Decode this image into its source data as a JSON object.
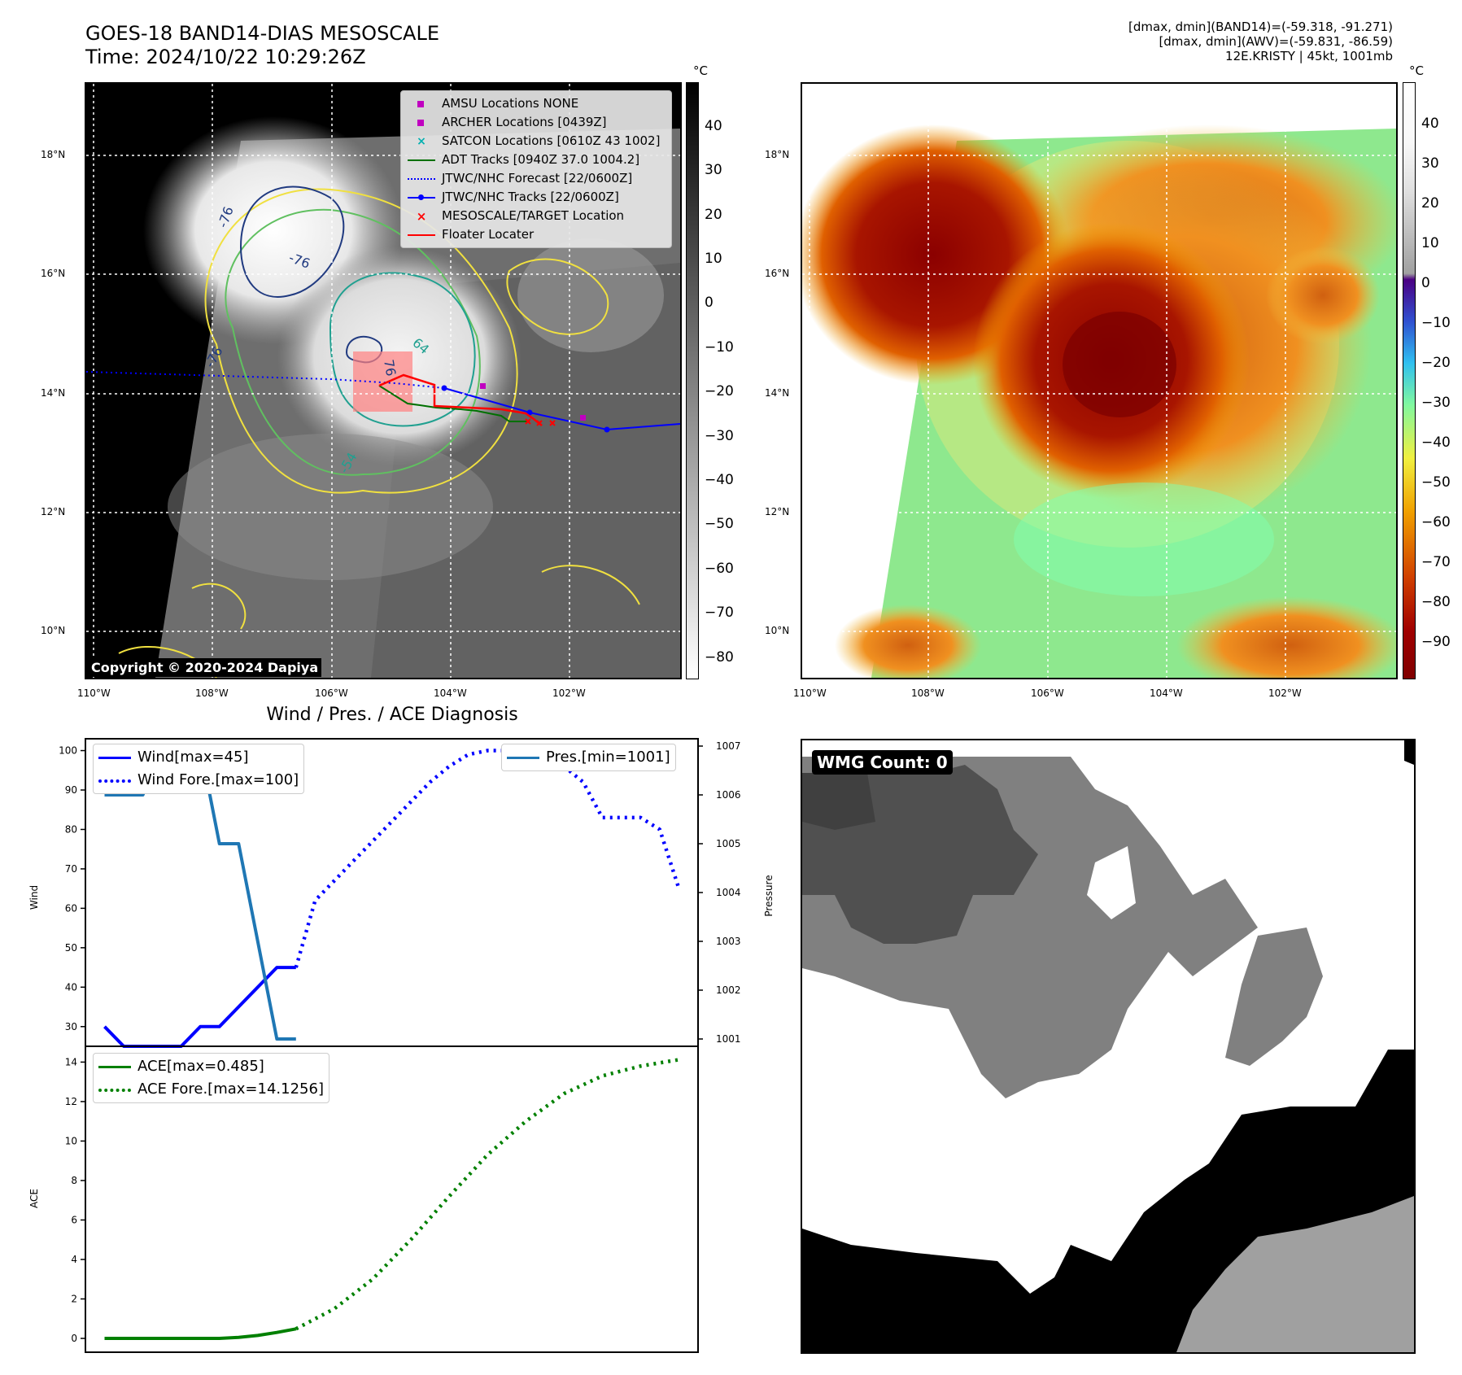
{
  "header": {
    "title": "GOES-18 BAND14-DIAS MESOSCALE",
    "time": "Time: 2024/10/22 10:29:26Z",
    "info_line1": "[dmax, dmin](BAND14)=(-59.318, -91.271)",
    "info_line2": "[dmax, dmin](AWV)=(-59.831, -86.59)",
    "info_line3": "12E.KRISTY | 45kt, 1001mb"
  },
  "maps": {
    "lat_ticks": [
      "18°N",
      "16°N",
      "14°N",
      "12°N",
      "10°N"
    ],
    "lon_ticks": [
      "110°W",
      "108°W",
      "106°W",
      "104°W",
      "102°W"
    ],
    "copyright": "Copyright © 2020-2024 Dapiya",
    "unit": "°C",
    "cbar_left_ticks": [
      "40",
      "30",
      "20",
      "10",
      "0",
      "−10",
      "−20",
      "−30",
      "−40",
      "−50",
      "−60",
      "−70",
      "−80"
    ],
    "cbar_right_ticks": [
      "40",
      "30",
      "20",
      "10",
      "0",
      "−10",
      "−20",
      "−30",
      "−40",
      "−50",
      "−60",
      "−70",
      "−80",
      "−90"
    ],
    "contour_labels": [
      "-76",
      "-76",
      "64",
      "76",
      "-76",
      "-54"
    ],
    "legend": [
      {
        "label": "AMSU Locations NONE",
        "kind": "square",
        "color": "#c000c0"
      },
      {
        "label": "ARCHER Locations [0439Z]",
        "kind": "square",
        "color": "#c000c0"
      },
      {
        "label": "SATCON Locations [0610Z 43 1002]",
        "kind": "cross",
        "color": "#00b0b0"
      },
      {
        "label": "ADT Tracks [0940Z 37.0 1004.2]",
        "kind": "line",
        "color": "#007000"
      },
      {
        "label": "JTWC/NHC Forecast [22/0600Z]",
        "kind": "dotted",
        "color": "#0000ff"
      },
      {
        "label": "JTWC/NHC Tracks [22/0600Z]",
        "kind": "linedot",
        "color": "#0000ff"
      },
      {
        "label": "MESOSCALE/TARGET Location",
        "kind": "redx",
        "color": "#ff0000"
      },
      {
        "label": "Floater Locater",
        "kind": "line",
        "color": "#ff0000"
      }
    ]
  },
  "wmg": {
    "label": "WMG Count: 0"
  },
  "chart_data": [
    {
      "type": "line",
      "title": "Wind / Pres. / ACE Diagnosis",
      "ylabel": "Wind",
      "ylabel_right": "Pressure",
      "ylim": [
        25,
        103
      ],
      "ylim_right": [
        1000.85,
        1007.15
      ],
      "yticks": [
        30,
        40,
        50,
        60,
        70,
        80,
        90,
        100
      ],
      "yticks_right": [
        1001,
        1002,
        1003,
        1004,
        1005,
        1006,
        1007
      ],
      "x_range": [
        -1,
        31
      ],
      "series": [
        {
          "name": "Wind[max=45]",
          "style": "solid",
          "color": "#0000ff",
          "axis": "left",
          "x": [
            0,
            1,
            2,
            3,
            4,
            5,
            6,
            7,
            8,
            9,
            10
          ],
          "values": [
            30,
            25,
            25,
            25,
            25,
            30,
            30,
            35,
            40,
            45,
            45
          ]
        },
        {
          "name": "Wind Fore.[max=100]",
          "style": "dotted",
          "color": "#0000ff",
          "axis": "left",
          "x": [
            10,
            11,
            12,
            13,
            14,
            15,
            16,
            17,
            18,
            19,
            20,
            21,
            22,
            23,
            24,
            25,
            26,
            27,
            28,
            29,
            30
          ],
          "values": [
            45,
            62,
            67,
            72,
            77,
            82,
            87,
            92,
            96,
            99,
            100,
            100,
            100,
            98,
            96,
            92,
            83,
            83,
            83,
            80,
            65
          ]
        },
        {
          "name": "Pres.[min=1001]",
          "style": "solid",
          "color": "#1f77b4",
          "axis": "right",
          "x": [
            0,
            1,
            2,
            3,
            4,
            5,
            6,
            7,
            8,
            9,
            10
          ],
          "values": [
            1006,
            1006,
            1006,
            1007,
            1007,
            1007,
            1005,
            1005,
            1003,
            1001,
            1001
          ]
        }
      ]
    },
    {
      "type": "line",
      "ylabel": "ACE",
      "ylim": [
        -0.7,
        14.8
      ],
      "yticks": [
        0,
        2,
        4,
        6,
        8,
        10,
        12,
        14
      ],
      "x_range": [
        -1,
        31
      ],
      "series": [
        {
          "name": "ACE[max=0.485]",
          "style": "solid",
          "color": "#008000",
          "x": [
            0,
            2,
            4,
            6,
            7,
            8,
            9,
            10
          ],
          "values": [
            0,
            0,
            0,
            0,
            0.05,
            0.15,
            0.3,
            0.485
          ]
        },
        {
          "name": "ACE Fore.[max=14.1256]",
          "style": "dotted",
          "color": "#008000",
          "x": [
            10,
            12,
            14,
            16,
            18,
            20,
            22,
            24,
            26,
            28,
            30
          ],
          "values": [
            0.485,
            1.5,
            3.0,
            5.0,
            7.2,
            9.3,
            11.0,
            12.4,
            13.3,
            13.8,
            14.1256
          ]
        }
      ]
    }
  ]
}
